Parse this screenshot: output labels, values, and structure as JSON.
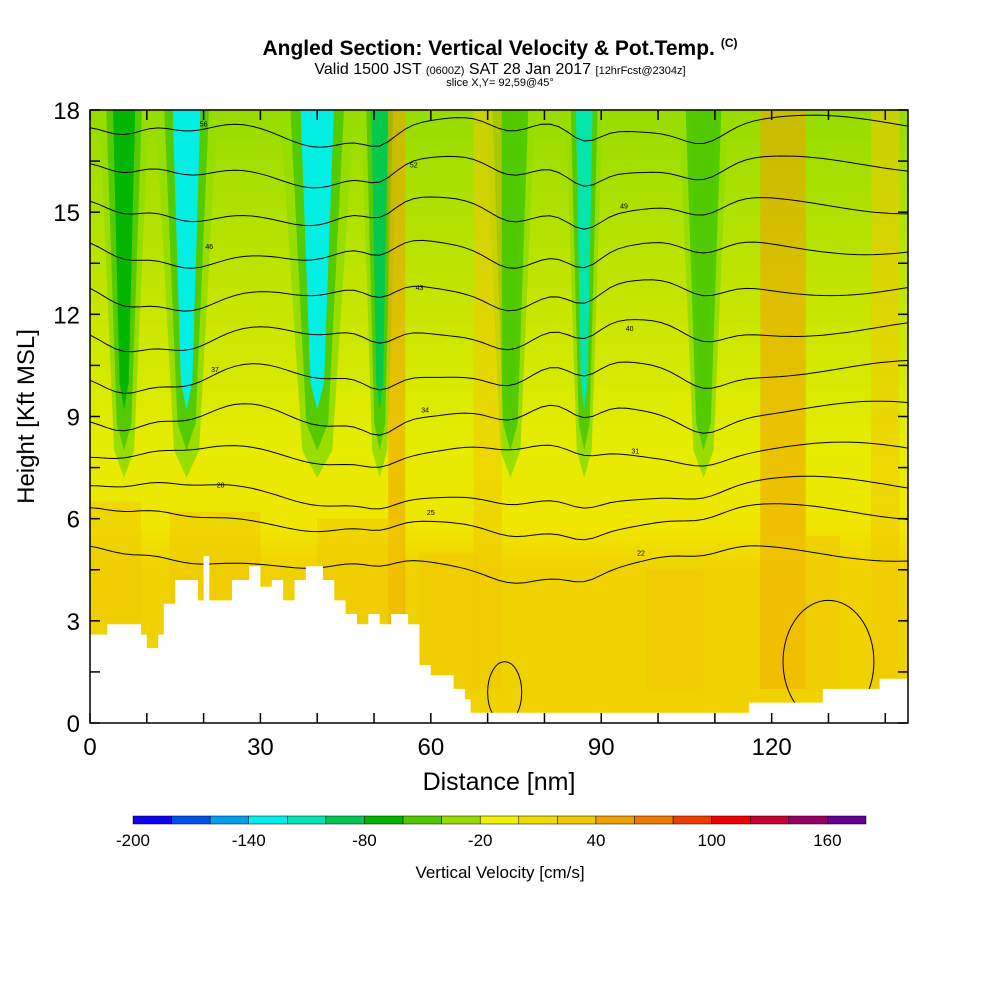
{
  "header": {
    "title": "Angled Section: Vertical Velocity & Pot.Temp.",
    "title_unit": "(C)",
    "valid_a": "Valid 1500 JST",
    "valid_b": "(0600Z)",
    "valid_c": "SAT 28 Jan 2017",
    "valid_d": "[12hrFcst@2304z]",
    "slice": "slice X,Y= 92,59@45°"
  },
  "chart_data": {
    "type": "heatmap",
    "title": "Angled Section: Vertical Velocity & Pot.Temp. (C)",
    "xlabel": "Distance [nm]",
    "ylabel": "Height [Kft MSL]",
    "xlim": [
      0,
      144
    ],
    "ylim": [
      0,
      18
    ],
    "x_ticks": [
      0,
      30,
      60,
      90,
      120
    ],
    "y_ticks": [
      0,
      3,
      6,
      9,
      12,
      15,
      18
    ],
    "colorbar": {
      "label": "Vertical Velocity [cm/s]",
      "range": [
        -200,
        180
      ],
      "step": 20,
      "tick_labels": [
        -200,
        -140,
        -80,
        -20,
        40,
        100,
        160
      ],
      "colors": [
        "#0f00f0",
        "#0050f0",
        "#00a0f0",
        "#00f0f0",
        "#00e6b4",
        "#00c850",
        "#00b400",
        "#50c800",
        "#96dc00",
        "#f0f000",
        "#f0dc00",
        "#f0c800",
        "#f0a000",
        "#f07800",
        "#f03c00",
        "#f00000",
        "#c80032",
        "#960064",
        "#640096"
      ]
    },
    "theta_contours": [
      {
        "ylevel": 17.6,
        "label": "56"
      },
      {
        "ylevel": 16.4,
        "label": "52"
      },
      {
        "ylevel": 15.2,
        "label": "49"
      },
      {
        "ylevel": 14.0,
        "label": "46"
      },
      {
        "ylevel": 12.8,
        "label": "43"
      },
      {
        "ylevel": 11.6,
        "label": "40"
      },
      {
        "ylevel": 10.4,
        "label": "37"
      },
      {
        "ylevel": 9.2,
        "label": "34"
      },
      {
        "ylevel": 8.0,
        "label": "31"
      },
      {
        "ylevel": 7.0,
        "label": "28"
      },
      {
        "ylevel": 6.2,
        "label": "25"
      },
      {
        "ylevel": 5.0,
        "label": "22"
      }
    ],
    "terrain": [
      {
        "x": 0,
        "h": 2.6
      },
      {
        "x": 3,
        "h": 2.9
      },
      {
        "x": 7,
        "h": 2.9
      },
      {
        "x": 9,
        "h": 2.6
      },
      {
        "x": 10,
        "h": 2.2
      },
      {
        "x": 12,
        "h": 2.6
      },
      {
        "x": 13,
        "h": 3.5
      },
      {
        "x": 15,
        "h": 4.2
      },
      {
        "x": 18,
        "h": 4.2
      },
      {
        "x": 19,
        "h": 3.6
      },
      {
        "x": 20,
        "h": 4.9
      },
      {
        "x": 21,
        "h": 3.6
      },
      {
        "x": 24,
        "h": 3.6
      },
      {
        "x": 25,
        "h": 4.2
      },
      {
        "x": 28,
        "h": 4.6
      },
      {
        "x": 30,
        "h": 4.0
      },
      {
        "x": 32,
        "h": 4.2
      },
      {
        "x": 34,
        "h": 3.6
      },
      {
        "x": 36,
        "h": 4.2
      },
      {
        "x": 38,
        "h": 4.6
      },
      {
        "x": 41,
        "h": 4.2
      },
      {
        "x": 43,
        "h": 3.6
      },
      {
        "x": 45,
        "h": 3.2
      },
      {
        "x": 47,
        "h": 2.9
      },
      {
        "x": 49,
        "h": 3.2
      },
      {
        "x": 51,
        "h": 2.9
      },
      {
        "x": 53,
        "h": 3.2
      },
      {
        "x": 56,
        "h": 2.9
      },
      {
        "x": 58,
        "h": 1.7
      },
      {
        "x": 60,
        "h": 1.4
      },
      {
        "x": 62,
        "h": 1.4
      },
      {
        "x": 64,
        "h": 1.0
      },
      {
        "x": 66,
        "h": 0.7
      },
      {
        "x": 67,
        "h": 0.3
      },
      {
        "x": 114,
        "h": 0.3
      },
      {
        "x": 116,
        "h": 0.6
      },
      {
        "x": 128,
        "h": 0.6
      },
      {
        "x": 129,
        "h": 1.0
      },
      {
        "x": 138,
        "h": 1.0
      },
      {
        "x": 139,
        "h": 1.3
      },
      {
        "x": 144,
        "h": 1.3
      }
    ],
    "downdraft_columns": [
      {
        "x": 6,
        "width": 4,
        "top_value": -80
      },
      {
        "x": 17,
        "width": 5,
        "top_value": -140
      },
      {
        "x": 40,
        "width": 6,
        "top_value": -140
      },
      {
        "x": 51,
        "width": 3,
        "top_value": -100
      },
      {
        "x": 74,
        "width": 4,
        "top_value": -60
      },
      {
        "x": 87,
        "width": 3,
        "top_value": -120
      },
      {
        "x": 108,
        "width": 4,
        "top_value": -60
      }
    ],
    "updraft_columns": [
      {
        "x": 54,
        "width": 3,
        "top_value": 40
      },
      {
        "x": 70,
        "width": 5,
        "top_value": 30
      },
      {
        "x": 122,
        "width": 8,
        "top_value": 40
      },
      {
        "x": 140,
        "width": 5,
        "top_value": 30
      }
    ]
  }
}
